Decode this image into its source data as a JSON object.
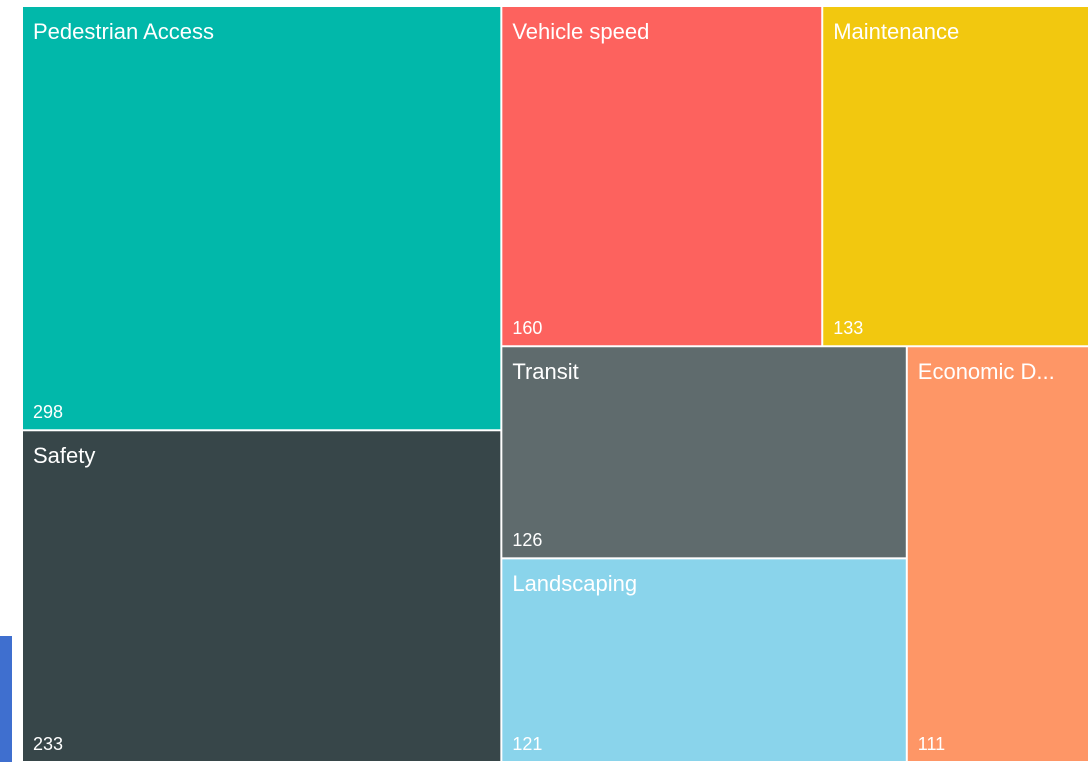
{
  "chart_data": {
    "type": "treemap",
    "categories": [
      "Pedestrian Access",
      "Safety",
      "Vehicle speed",
      "Maintenance",
      "Transit",
      "Landscaping",
      "Economic D..."
    ],
    "values": [
      298,
      233,
      160,
      133,
      126,
      121,
      111
    ],
    "colors": [
      "#01B8AA",
      "#374649",
      "#FD625E",
      "#F2C80F",
      "#5F6B6D",
      "#8AD4EB",
      "#FE9666"
    ]
  }
}
